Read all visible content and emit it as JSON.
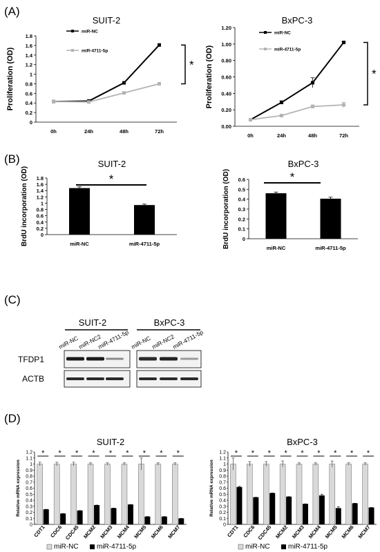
{
  "panels": {
    "a": "(A)",
    "b": "(B)",
    "c": "(C)",
    "d": "(D)"
  },
  "colors": {
    "nc": "#000000",
    "mir": "#b3b3b3",
    "bar_black": "#000000",
    "bar_gray": "#d9d9d9"
  },
  "chart_data": [
    {
      "id": "A1",
      "type": "line",
      "title": "SUIT-2",
      "xlabel": "",
      "ylabel": "Proliferation (OD)",
      "categories": [
        "0h",
        "24h",
        "48h",
        "72h"
      ],
      "ylim": [
        0,
        1.8
      ],
      "yticks": [
        "0",
        "0.2",
        "0.4",
        "0.6",
        "0.8",
        "1",
        "1.2",
        "1.4",
        "1.6",
        "1.8"
      ],
      "series": [
        {
          "name": "miR-NC",
          "values": [
            0.43,
            0.44,
            0.82,
            1.61
          ]
        },
        {
          "name": "miR-4711-5p",
          "values": [
            0.43,
            0.42,
            0.61,
            0.8
          ]
        }
      ],
      "significance": "*"
    },
    {
      "id": "A2",
      "type": "line",
      "title": "BxPC-3",
      "xlabel": "",
      "ylabel": "Proliferation (OD)",
      "categories": [
        "0h",
        "24h",
        "48h",
        "72h"
      ],
      "ylim": [
        0,
        1.2
      ],
      "yticks": [
        "0.00",
        "0.20",
        "0.40",
        "0.60",
        "0.80",
        "1.00",
        "1.20"
      ],
      "series": [
        {
          "name": "miR-NC",
          "values": [
            0.08,
            0.29,
            0.53,
            1.02
          ]
        },
        {
          "name": "miR-4711-5p",
          "values": [
            0.08,
            0.13,
            0.24,
            0.26
          ]
        }
      ],
      "significance": "*"
    },
    {
      "id": "B1",
      "type": "bar",
      "title": "SUIT-2",
      "ylabel": "BrdU incorporation (OD)",
      "categories": [
        "miR-NC",
        "miR-4711-5p"
      ],
      "values": [
        1.48,
        0.94
      ],
      "ylim": [
        0,
        1.8
      ],
      "yticks": [
        "0",
        "0.2",
        "0.4",
        "0.6",
        "0.8",
        "1",
        "1.2",
        "1.4",
        "1.6",
        "1.8"
      ],
      "significance": "*"
    },
    {
      "id": "B2",
      "type": "bar",
      "title": "BxPC-3",
      "ylabel": "BrdU incorporation (OD)",
      "categories": [
        "miR-NC",
        "miR-4711-5p"
      ],
      "values": [
        0.46,
        0.405
      ],
      "ylim": [
        0,
        0.6
      ],
      "yticks": [
        "0",
        "0.1",
        "0.2",
        "0.3",
        "0.4",
        "0.5",
        "0.6"
      ],
      "significance": "*"
    },
    {
      "id": "D1",
      "type": "bar",
      "title": "SUIT-2",
      "ylabel": "Relative mRNA expression",
      "categories": [
        "CDT1",
        "CDC6",
        "CDC45",
        "MCM2",
        "MCM3",
        "MCM4",
        "MCM5",
        "MCM6",
        "MCM7"
      ],
      "series": [
        {
          "name": "miR-NC",
          "values": [
            1,
            1,
            1,
            1,
            1,
            1,
            1,
            1,
            1
          ]
        },
        {
          "name": "miR-4711-5p",
          "values": [
            0.25,
            0.18,
            0.23,
            0.32,
            0.27,
            0.33,
            0.13,
            0.13,
            0.1
          ]
        }
      ],
      "ylim": [
        0,
        1.2
      ],
      "yticks": [
        "0",
        "0.1",
        "0.2",
        "0.3",
        "0.4",
        "0.5",
        "0.6",
        "0.7",
        "0.8",
        "0.9",
        "1",
        "1.1",
        "1.2"
      ],
      "significance": "*"
    },
    {
      "id": "D2",
      "type": "bar",
      "title": "BxPC-3",
      "ylabel": "Relative mRNA expression",
      "categories": [
        "CDT1",
        "CDC6",
        "CDC45",
        "MCM2",
        "MCM3",
        "MCM4",
        "MCM5",
        "MCM6",
        "MCM7"
      ],
      "series": [
        {
          "name": "miR-NC",
          "values": [
            1,
            1,
            1,
            1,
            1,
            1,
            1,
            1,
            1
          ]
        },
        {
          "name": "miR-4711-5p",
          "values": [
            0.62,
            0.45,
            0.52,
            0.46,
            0.34,
            0.48,
            0.27,
            0.35,
            0.28
          ]
        }
      ],
      "ylim": [
        0,
        1.2
      ],
      "yticks": [
        "0",
        "0.1",
        "0.2",
        "0.3",
        "0.4",
        "0.5",
        "0.6",
        "0.7",
        "0.8",
        "0.9",
        "1",
        "1.1",
        "1.2"
      ],
      "significance": "*"
    }
  ],
  "blot": {
    "groups": [
      "SUIT-2",
      "BxPC-3"
    ],
    "lanes": [
      "miR-NC",
      "miR-NC2",
      "miR-4711-5p",
      "miR-NC",
      "miR-NC2",
      "miR-4711-5p"
    ],
    "rows": [
      "TFDP1",
      "ACTB"
    ]
  },
  "legend_d": [
    "miR-NC",
    "miR-4711-5p"
  ]
}
